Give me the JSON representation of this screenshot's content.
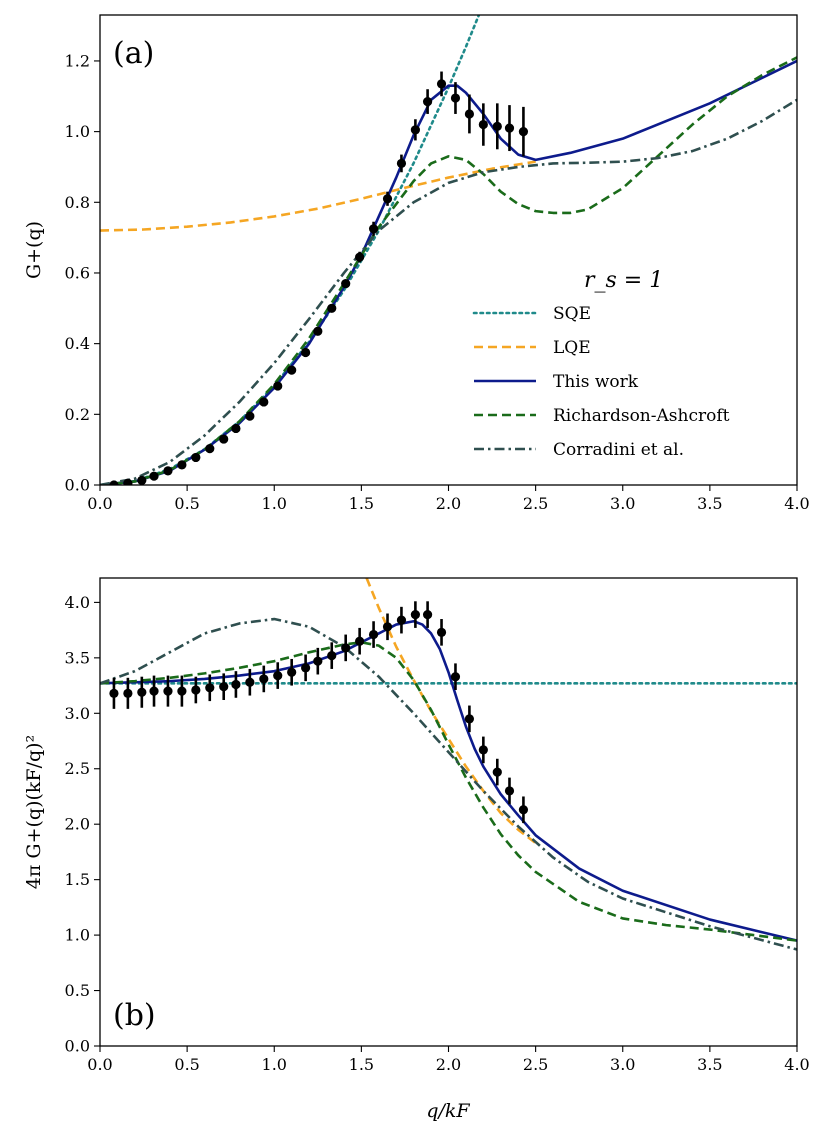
{
  "chart_data": [
    {
      "type": "line",
      "panel_label": "(a)",
      "ylabel": "G+(q)",
      "xlabel": "",
      "xlim": [
        0.0,
        4.0
      ],
      "ylim": [
        0.0,
        1.33
      ],
      "xticks": [
        "0.0",
        "0.5",
        "1.0",
        "1.5",
        "2.0",
        "2.5",
        "3.0",
        "3.5",
        "4.0"
      ],
      "yticks": [
        "0.0",
        "0.2",
        "0.4",
        "0.6",
        "0.8",
        "1.0",
        "1.2"
      ],
      "annotation": "r_s = 1",
      "legend": [
        "SQE",
        "LQE",
        "This work",
        "Richardson-Ashcroft",
        "Corradini et al."
      ],
      "series": [
        {
          "name": "SQE",
          "style": "dotted",
          "color": "#1f8a8a",
          "x": [
            0.0,
            0.2,
            0.4,
            0.6,
            0.8,
            1.0,
            1.2,
            1.4,
            1.6,
            1.8,
            2.0,
            2.1,
            2.2,
            2.25,
            2.3
          ],
          "y": [
            0.0,
            0.011,
            0.045,
            0.101,
            0.18,
            0.281,
            0.405,
            0.551,
            0.72,
            0.911,
            1.125,
            1.24,
            1.361,
            1.42,
            1.49
          ]
        },
        {
          "name": "LQE",
          "style": "dashed",
          "color": "#f5a623",
          "x": [
            0.0,
            0.25,
            0.5,
            0.75,
            1.0,
            1.25,
            1.5,
            1.75,
            2.0,
            2.25,
            2.5
          ],
          "y": [
            0.72,
            0.723,
            0.731,
            0.743,
            0.76,
            0.782,
            0.81,
            0.841,
            0.87,
            0.895,
            0.915
          ]
        },
        {
          "name": "This work",
          "style": "solid",
          "color": "#0d1b8c",
          "x": [
            0.0,
            0.2,
            0.4,
            0.6,
            0.8,
            1.0,
            1.2,
            1.4,
            1.5,
            1.6,
            1.7,
            1.8,
            1.9,
            2.0,
            2.05,
            2.1,
            2.2,
            2.3,
            2.4,
            2.5,
            2.7,
            3.0,
            3.5,
            4.0
          ],
          "y": [
            0.0,
            0.01,
            0.04,
            0.1,
            0.175,
            0.275,
            0.4,
            0.56,
            0.65,
            0.76,
            0.87,
            0.99,
            1.09,
            1.13,
            1.13,
            1.11,
            1.05,
            0.98,
            0.935,
            0.92,
            0.94,
            0.98,
            1.08,
            1.2
          ]
        },
        {
          "name": "Richardson-Ashcroft",
          "style": "dashed",
          "color": "#1a6b1a",
          "x": [
            0.0,
            0.2,
            0.4,
            0.6,
            0.8,
            1.0,
            1.2,
            1.4,
            1.6,
            1.8,
            1.9,
            2.0,
            2.1,
            2.2,
            2.3,
            2.4,
            2.5,
            2.6,
            2.7,
            2.8,
            3.0,
            3.2,
            3.4,
            3.6,
            3.8,
            4.0
          ],
          "y": [
            0.0,
            0.01,
            0.042,
            0.1,
            0.18,
            0.285,
            0.415,
            0.57,
            0.73,
            0.86,
            0.91,
            0.93,
            0.92,
            0.88,
            0.83,
            0.795,
            0.775,
            0.77,
            0.77,
            0.78,
            0.84,
            0.93,
            1.02,
            1.1,
            1.16,
            1.21
          ]
        },
        {
          "name": "Corradini et al.",
          "style": "dashdot",
          "color": "#2f4f4f",
          "x": [
            0.0,
            0.2,
            0.4,
            0.6,
            0.8,
            1.0,
            1.2,
            1.4,
            1.6,
            1.8,
            2.0,
            2.2,
            2.4,
            2.6,
            2.8,
            3.0,
            3.2,
            3.4,
            3.6,
            3.8,
            4.0
          ],
          "y": [
            0.0,
            0.018,
            0.065,
            0.14,
            0.235,
            0.345,
            0.47,
            0.6,
            0.72,
            0.8,
            0.855,
            0.885,
            0.9,
            0.91,
            0.912,
            0.915,
            0.925,
            0.945,
            0.98,
            1.03,
            1.09
          ]
        }
      ],
      "points": {
        "name": "data",
        "x": [
          0.08,
          0.16,
          0.24,
          0.31,
          0.39,
          0.47,
          0.55,
          0.63,
          0.71,
          0.78,
          0.86,
          0.94,
          1.02,
          1.1,
          1.18,
          1.25,
          1.33,
          1.41,
          1.49,
          1.57,
          1.65,
          1.73,
          1.81,
          1.88,
          1.96,
          2.04,
          2.12,
          2.2,
          2.28,
          2.35,
          2.43
        ],
        "y": [
          0.0,
          0.005,
          0.013,
          0.025,
          0.04,
          0.057,
          0.078,
          0.103,
          0.13,
          0.16,
          0.195,
          0.235,
          0.28,
          0.325,
          0.375,
          0.435,
          0.5,
          0.57,
          0.645,
          0.725,
          0.81,
          0.91,
          1.005,
          1.085,
          1.135,
          1.095,
          1.05,
          1.02,
          1.015,
          1.01,
          1.0
        ],
        "err": [
          0.0,
          0.0,
          0.0,
          0.0,
          0.0,
          0.0,
          0.0,
          0.0,
          0.0,
          0.0,
          0.0,
          0.0,
          0.0,
          0.0,
          0.0,
          0.0,
          0.01,
          0.01,
          0.015,
          0.02,
          0.02,
          0.025,
          0.03,
          0.035,
          0.035,
          0.045,
          0.055,
          0.06,
          0.065,
          0.065,
          0.07
        ]
      }
    },
    {
      "type": "line",
      "panel_label": "(b)",
      "ylabel": "4π G+(q)(kF/q)²",
      "xlabel": "q/kF",
      "xlim": [
        0.0,
        4.0
      ],
      "ylim": [
        0.0,
        4.22
      ],
      "xticks": [
        "0.0",
        "0.5",
        "1.0",
        "1.5",
        "2.0",
        "2.5",
        "3.0",
        "3.5",
        "4.0"
      ],
      "yticks": [
        "0.0",
        "0.5",
        "1.0",
        "1.5",
        "2.0",
        "2.5",
        "3.0",
        "3.5",
        "4.0"
      ],
      "series": [
        {
          "name": "SQE",
          "style": "dotted",
          "color": "#1f8a8a",
          "x": [
            0.0,
            4.0
          ],
          "y": [
            3.27,
            3.27
          ]
        },
        {
          "name": "LQE",
          "style": "dashed",
          "color": "#f5a623",
          "x": [
            1.53,
            1.6,
            1.7,
            1.8,
            1.9,
            2.0,
            2.1,
            2.2,
            2.3,
            2.4,
            2.5
          ],
          "y": [
            4.22,
            3.95,
            3.6,
            3.3,
            3.02,
            2.77,
            2.52,
            2.3,
            2.1,
            1.95,
            1.83
          ]
        },
        {
          "name": "This work",
          "style": "solid",
          "color": "#0d1b8c",
          "x": [
            0.0,
            0.2,
            0.4,
            0.6,
            0.8,
            1.0,
            1.2,
            1.4,
            1.6,
            1.7,
            1.8,
            1.85,
            1.9,
            1.95,
            2.0,
            2.05,
            2.1,
            2.15,
            2.2,
            2.3,
            2.4,
            2.5,
            2.75,
            3.0,
            3.5,
            4.0
          ],
          "y": [
            3.27,
            3.28,
            3.29,
            3.31,
            3.34,
            3.38,
            3.45,
            3.56,
            3.72,
            3.8,
            3.83,
            3.8,
            3.72,
            3.58,
            3.37,
            3.12,
            2.88,
            2.68,
            2.52,
            2.27,
            2.08,
            1.9,
            1.6,
            1.4,
            1.14,
            0.95
          ]
        },
        {
          "name": "Richardson-Ashcroft",
          "style": "dashed",
          "color": "#1a6b1a",
          "x": [
            0.0,
            0.2,
            0.4,
            0.6,
            0.8,
            1.0,
            1.2,
            1.4,
            1.5,
            1.6,
            1.7,
            1.8,
            1.9,
            2.0,
            2.1,
            2.2,
            2.3,
            2.4,
            2.5,
            2.75,
            3.0,
            3.25,
            3.5,
            3.75,
            4.0
          ],
          "y": [
            3.27,
            3.29,
            3.32,
            3.36,
            3.41,
            3.47,
            3.55,
            3.62,
            3.64,
            3.61,
            3.5,
            3.3,
            3.03,
            2.72,
            2.42,
            2.15,
            1.91,
            1.72,
            1.57,
            1.3,
            1.15,
            1.09,
            1.05,
            1.0,
            0.95
          ]
        },
        {
          "name": "Corradini et al.",
          "style": "dashdot",
          "color": "#2f4f4f",
          "x": [
            0.0,
            0.2,
            0.4,
            0.6,
            0.8,
            1.0,
            1.2,
            1.4,
            1.6,
            1.8,
            2.0,
            2.2,
            2.4,
            2.6,
            2.8,
            3.0,
            3.5,
            4.0
          ],
          "y": [
            3.27,
            3.38,
            3.55,
            3.72,
            3.81,
            3.85,
            3.78,
            3.6,
            3.33,
            3.0,
            2.65,
            2.3,
            1.98,
            1.7,
            1.48,
            1.33,
            1.08,
            0.87
          ]
        }
      ],
      "points": {
        "name": "data",
        "x": [
          0.08,
          0.16,
          0.24,
          0.31,
          0.39,
          0.47,
          0.55,
          0.63,
          0.71,
          0.78,
          0.86,
          0.94,
          1.02,
          1.1,
          1.18,
          1.25,
          1.33,
          1.41,
          1.49,
          1.57,
          1.65,
          1.73,
          1.81,
          1.88,
          1.96,
          2.04,
          2.12,
          2.2,
          2.28,
          2.35,
          2.43
        ],
        "y": [
          3.18,
          3.18,
          3.19,
          3.2,
          3.2,
          3.2,
          3.21,
          3.23,
          3.24,
          3.26,
          3.28,
          3.31,
          3.34,
          3.37,
          3.41,
          3.47,
          3.52,
          3.59,
          3.65,
          3.71,
          3.78,
          3.84,
          3.89,
          3.89,
          3.73,
          3.33,
          2.95,
          2.67,
          2.47,
          2.3,
          2.13
        ]
      }
    }
  ]
}
